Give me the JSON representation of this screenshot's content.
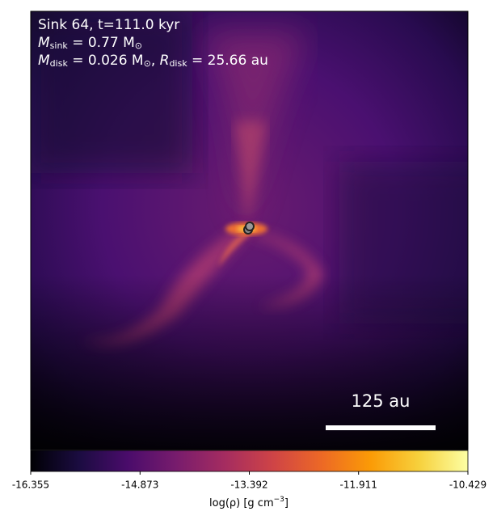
{
  "chart_data": {
    "type": "density-map",
    "annotations": {
      "line1": "Sink 64, t=111.0 kyr",
      "line2": {
        "symbol": "M",
        "subscript": "sink",
        "rest": " = 0.77 M",
        "unit_subscript": "⊙"
      },
      "line3": {
        "symbol": "M",
        "subscript": "disk",
        "rest": " = 0.026 M",
        "unit_subscript": "⊙",
        "sep": ", ",
        "symbol2": "R",
        "subscript2": "disk",
        "rest2": " = 25.66 au"
      }
    },
    "scale_bar": "125 au",
    "colormap": "inferno",
    "clim": [
      -16.355,
      -10.429
    ],
    "cticks": [
      -16.355,
      -14.873,
      -13.392,
      -11.911,
      -10.429
    ],
    "colorbar_label": {
      "text": "log(ρ) [g cm",
      "superscript": "−3",
      "end": "]"
    }
  }
}
